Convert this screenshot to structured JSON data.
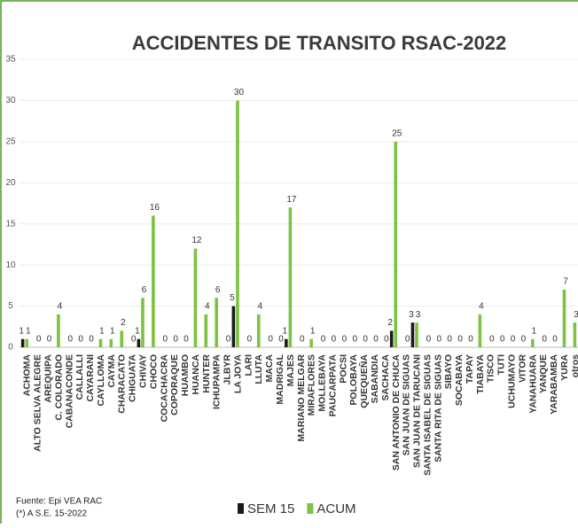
{
  "chart_data": {
    "type": "bar",
    "title": "ACCIDENTES DE TRANSITO RSAC-2022",
    "categories": [
      "ACHOMA",
      "ALTO SELVA ALEGRE",
      "AREQUIPA",
      "C. COLORADO",
      "CABANACONDE",
      "CALLALLI",
      "CAYARANI",
      "CAYLLOMA",
      "CAYMA",
      "CHARACATO",
      "CHIGUATA",
      "CHIVAY",
      "CHOCO",
      "COCACHACRA",
      "COPORAQUE",
      "HUAMBO",
      "HUANCA",
      "HUNTER",
      "ICHUPAMPA",
      "JLBYR",
      "LA JOYA",
      "LARI",
      "LLUTA",
      "MACA",
      "MADRIGAL",
      "MAJES",
      "MARIANO MELGAR",
      "MIRAFLORES",
      "MOLLEBAYA",
      "PAUCARPATA",
      "POCSI",
      "POLOBAYA",
      "QUEQUEÑA",
      "SABANDIA",
      "SACHACA",
      "SAN ANTONIO DE CHUCA",
      "SAN JUAN DE SIGUAS",
      "SAN JUAN DE TARUCANI",
      "SANTA ISABEL DE SIGUAS",
      "SANTA RITA DE SIGUAS",
      "SIBAYO",
      "SOCABAYA",
      "TAPAY",
      "TIABAYA",
      "TISCO",
      "TUTI",
      "UCHUMAYO",
      "VITOR",
      "YANAHUARA",
      "YANQUE",
      "YARABAMBA",
      "YURA",
      "otros"
    ],
    "series": [
      {
        "name": "SEM 15",
        "color": "#1a1a1a",
        "values": [
          1,
          0,
          0,
          0,
          0,
          0,
          0,
          0,
          0,
          0,
          0,
          1,
          0,
          0,
          0,
          0,
          0,
          0,
          0,
          0,
          5,
          0,
          0,
          0,
          0,
          1,
          0,
          0,
          0,
          0,
          0,
          0,
          0,
          0,
          0,
          2,
          0,
          3,
          0,
          0,
          0,
          0,
          0,
          0,
          0,
          0,
          0,
          0,
          0,
          0,
          0,
          0,
          0
        ]
      },
      {
        "name": "ACUM",
        "color": "#7dc242",
        "values": [
          1,
          0,
          0,
          4,
          0,
          0,
          0,
          1,
          1,
          2,
          0,
          6,
          16,
          0,
          0,
          0,
          12,
          4,
          6,
          0,
          30,
          0,
          4,
          0,
          0,
          17,
          0,
          1,
          0,
          0,
          0,
          0,
          0,
          0,
          0,
          25,
          0,
          3,
          0,
          0,
          0,
          0,
          0,
          4,
          0,
          0,
          0,
          0,
          1,
          0,
          0,
          7,
          3
        ]
      }
    ],
    "ylim": [
      0,
      35
    ],
    "yticks": [
      0,
      5,
      10,
      15,
      20,
      25,
      30,
      35
    ],
    "grid": true,
    "notes": [
      "Fuente:  Epi VEA RAC",
      "(*) A S.E. 15-2022"
    ]
  }
}
